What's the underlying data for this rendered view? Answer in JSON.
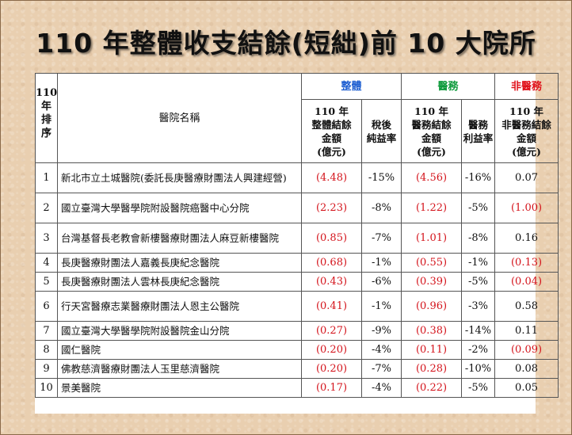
{
  "slide": {
    "title": "110 年整體收支結餘(短絀)前 10 大院所"
  },
  "table": {
    "header": {
      "rank": "110\n年\n排\n序",
      "hospital_name": "醫院名稱",
      "group_overall": "整體",
      "group_medical": "醫務",
      "group_nonmedical": "非醫務",
      "col_overall_amount": "110 年\n整體結餘\n金額\n(億元)",
      "col_after_tax_margin": "稅後\n純益率",
      "col_medical_amount": "110 年\n醫務結餘\n金額\n(億元)",
      "col_medical_margin": "醫務\n利益率",
      "col_nonmedical_amount": "110 年\n非醫務結餘\n金額\n(億元)"
    },
    "group_colors": {
      "overall": "#1f5fd1",
      "medical": "#0d9a3b",
      "nonmedical": "#e0121b"
    },
    "rows": [
      {
        "rank": "1",
        "name": "新北市立土城醫院(委託長庚醫療財團法人興建經營)",
        "overall": "(4.48)",
        "after_tax": "-15%",
        "medical": "(4.56)",
        "medical_margin": "-16%",
        "nonmedical": "0.07"
      },
      {
        "rank": "2",
        "name": "國立臺灣大學醫學院附設醫院癌醫中心分院",
        "overall": "(2.23)",
        "after_tax": "-8%",
        "medical": "(1.22)",
        "medical_margin": "-5%",
        "nonmedical": "(1.00)"
      },
      {
        "rank": "3",
        "name": "台灣基督長老教會新樓醫療財團法人麻豆新樓醫院",
        "overall": "(0.85)",
        "after_tax": "-7%",
        "medical": "(1.01)",
        "medical_margin": "-8%",
        "nonmedical": "0.16"
      },
      {
        "rank": "4",
        "name": "長庚醫療財團法人嘉義長庚紀念醫院",
        "overall": "(0.68)",
        "after_tax": "-1%",
        "medical": "(0.55)",
        "medical_margin": "-1%",
        "nonmedical": "(0.13)"
      },
      {
        "rank": "5",
        "name": "長庚醫療財團法人雲林長庚紀念醫院",
        "overall": "(0.43)",
        "after_tax": "-6%",
        "medical": "(0.39)",
        "medical_margin": "-5%",
        "nonmedical": "(0.04)"
      },
      {
        "rank": "6",
        "name": "行天宮醫療志業醫療財團法人恩主公醫院",
        "overall": "(0.41)",
        "after_tax": "-1%",
        "medical": "(0.96)",
        "medical_margin": "-3%",
        "nonmedical": "0.58"
      },
      {
        "rank": "7",
        "name": "國立臺灣大學醫學院附設醫院金山分院",
        "overall": "(0.27)",
        "after_tax": "-9%",
        "medical": "(0.38)",
        "medical_margin": "-14%",
        "nonmedical": "0.11"
      },
      {
        "rank": "8",
        "name": "國仁醫院",
        "overall": "(0.20)",
        "after_tax": "-4%",
        "medical": "(0.11)",
        "medical_margin": "-2%",
        "nonmedical": "(0.09)"
      },
      {
        "rank": "9",
        "name": "佛教慈濟醫療財團法人玉里慈濟醫院",
        "overall": "(0.20)",
        "after_tax": "-7%",
        "medical": "(0.28)",
        "medical_margin": "-10%",
        "nonmedical": "0.08"
      },
      {
        "rank": "10",
        "name": "景美醫院",
        "overall": "(0.17)",
        "after_tax": "-4%",
        "medical": "(0.22)",
        "medical_margin": "-5%",
        "nonmedical": "0.05"
      }
    ]
  }
}
